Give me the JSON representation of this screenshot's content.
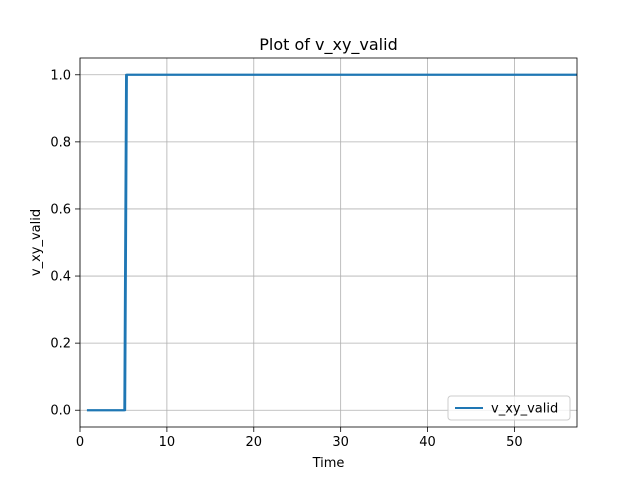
{
  "chart_data": {
    "type": "line",
    "title": "Plot of v_xy_valid",
    "xlabel": "Time",
    "ylabel": "v_xy_valid",
    "xlim": [
      0,
      57.2
    ],
    "ylim": [
      -0.05,
      1.05
    ],
    "xticks": [
      0,
      10,
      20,
      30,
      40,
      50
    ],
    "yticks": [
      0.0,
      0.2,
      0.4,
      0.6,
      0.8,
      1.0
    ],
    "xtick_labels": [
      "0",
      "10",
      "20",
      "30",
      "40",
      "50"
    ],
    "ytick_labels": [
      "0.0",
      "0.2",
      "0.4",
      "0.6",
      "0.8",
      "1.0"
    ],
    "grid": true,
    "legend_position": "lower-right",
    "colors": {
      "series": "#1f77b4"
    },
    "series": [
      {
        "name": "v_xy_valid",
        "x": [
          0.8,
          5.1,
          5.3,
          5.5,
          57.2
        ],
        "y": [
          0,
          0,
          1,
          1,
          1
        ]
      },
      {
        "x": [
          0.8,
          5.2,
          5.4,
          5.8,
          57.2
        ],
        "y": [
          0,
          0,
          1,
          1,
          1
        ]
      }
    ]
  }
}
